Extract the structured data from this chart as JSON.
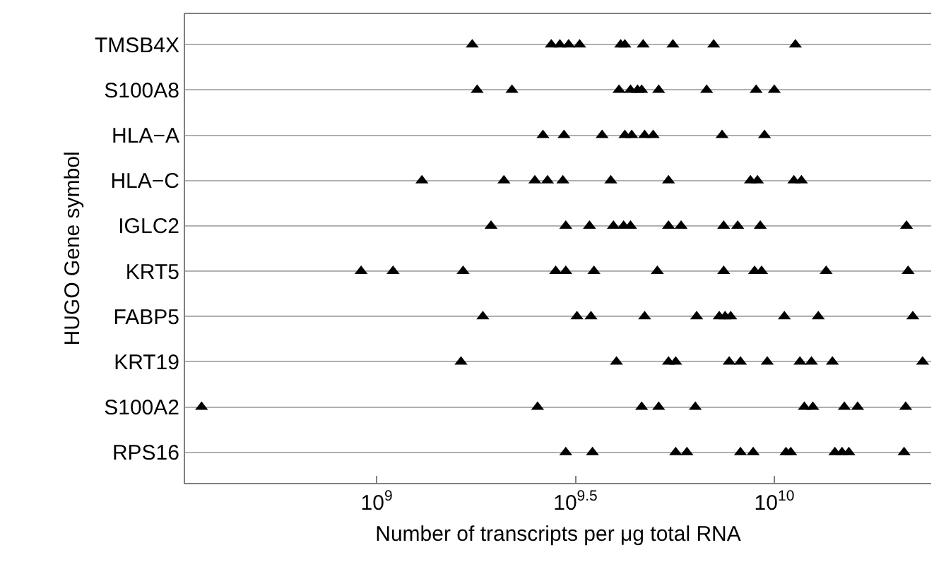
{
  "chart_data": {
    "type": "scatter",
    "orientation": "horizontal",
    "xlabel": "Number of transcripts per μg total RNA",
    "ylabel": "HUGO Gene symbol",
    "categories": [
      "TMSB4X",
      "S100A8",
      "HLA−A",
      "HLA−C",
      "IGLC2",
      "KRT5",
      "FABP5",
      "KRT19",
      "S100A2",
      "RPS16"
    ],
    "log": "x",
    "xlim": [
      330000000,
      24800000000
    ],
    "xticks": [
      {
        "value": 1000000000,
        "label": "10$^{9}$"
      },
      {
        "value": 3162277660,
        "label": "10$^{9.5}$"
      },
      {
        "value": 10000000000,
        "label": "10$^{10}$"
      }
    ],
    "grid": "y",
    "marker": "triangle",
    "series": [
      {
        "color": "#000000",
        "x": [
          "TMSB4X",
          "TMSB4X",
          "TMSB4X",
          "TMSB4X",
          "TMSB4X",
          "TMSB4X",
          "TMSB4X",
          "TMSB4X",
          "TMSB4X",
          "TMSB4X",
          "TMSB4X"
        ],
        "values": [
          1740000000,
          2750000000,
          2890000000,
          3040000000,
          3240000000,
          4110000000,
          4210000000,
          4680000000,
          5560000000,
          7040000000,
          11300000000
        ]
      },
      {
        "color": "#000000",
        "x": [
          "S100A8",
          "S100A8",
          "S100A8",
          "S100A8",
          "S100A8",
          "S100A8",
          "S100A8",
          "S100A8",
          "S100A8",
          "S100A8"
        ],
        "values": [
          1790000000,
          2190000000,
          4070000000,
          4350000000,
          4530000000,
          4640000000,
          5120000000,
          6760000000,
          9000000000,
          10000000000
        ]
      },
      {
        "color": "#000000",
        "x": [
          "HLA−A",
          "HLA−A",
          "HLA−A",
          "HLA−A",
          "HLA−A",
          "HLA−A",
          "HLA−A",
          "HLA−A",
          "HLA−A"
        ],
        "values": [
          2620000000,
          2960000000,
          3690000000,
          4210000000,
          4380000000,
          4720000000,
          4960000000,
          7390000000,
          9450000000
        ]
      },
      {
        "color": "#000000",
        "x": [
          "HLA−C",
          "HLA−C",
          "HLA−C",
          "HLA−C",
          "HLA−C",
          "HLA−C",
          "HLA−C",
          "HLA−C",
          "HLA−C",
          "HLA−C",
          "HLA−C"
        ],
        "values": [
          1300000000,
          2090000000,
          2500000000,
          2690000000,
          2940000000,
          3880000000,
          5420000000,
          8710000000,
          9070000000,
          11200000000,
          11700000000
        ]
      },
      {
        "color": "#000000",
        "x": [
          "IGLC2",
          "IGLC2",
          "IGLC2",
          "IGLC2",
          "IGLC2",
          "IGLC2",
          "IGLC2",
          "IGLC2",
          "IGLC2",
          "IGLC2",
          "IGLC2",
          "IGLC2"
        ],
        "values": [
          1940000000,
          2990000000,
          3430000000,
          3940000000,
          4180000000,
          4350000000,
          5420000000,
          5830000000,
          7460000000,
          8090000000,
          9220000000,
          21500000000
        ]
      },
      {
        "color": "#000000",
        "x": [
          "KRT5",
          "KRT5",
          "KRT5",
          "KRT5",
          "KRT5",
          "KRT5",
          "KRT5",
          "KRT5",
          "KRT5",
          "KRT5",
          "KRT5",
          "KRT5"
        ],
        "values": [
          914000000,
          1100000000,
          1650000000,
          2820000000,
          2990000000,
          3520000000,
          5080000000,
          7460000000,
          8920000000,
          9290000000,
          13500000000,
          21700000000
        ]
      },
      {
        "color": "#000000",
        "x": [
          "FABP5",
          "FABP5",
          "FABP5",
          "FABP5",
          "FABP5",
          "FABP5",
          "FABP5",
          "FABP5",
          "FABP5",
          "FABP5",
          "FABP5"
        ],
        "values": [
          1850000000,
          3190000000,
          3460000000,
          4720000000,
          6380000000,
          7270000000,
          7520000000,
          7770000000,
          10600000000,
          12900000000,
          22300000000
        ]
      },
      {
        "color": "#000000",
        "x": [
          "KRT19",
          "KRT19",
          "KRT19",
          "KRT19",
          "KRT19",
          "KRT19",
          "KRT19",
          "KRT19",
          "KRT19",
          "KRT19",
          "KRT19"
        ],
        "values": [
          1630000000,
          4010000000,
          5420000000,
          5650000000,
          7700000000,
          8220000000,
          9600000000,
          11600000000,
          12400000000,
          14000000000,
          23600000000
        ]
      },
      {
        "color": "#000000",
        "x": [
          "S100A2",
          "S100A2",
          "S100A2",
          "S100A2",
          "S100A2",
          "S100A2",
          "S100A2",
          "S100A2",
          "S100A2",
          "S100A2"
        ],
        "values": [
          363000000,
          2540000000,
          4640000000,
          5120000000,
          6330000000,
          11900000000,
          12500000000,
          15000000000,
          16200000000,
          21400000000
        ]
      },
      {
        "color": "#000000",
        "x": [
          "RPS16",
          "RPS16",
          "RPS16",
          "RPS16",
          "RPS16",
          "RPS16",
          "RPS16",
          "RPS16",
          "RPS16",
          "RPS16",
          "RPS16",
          "RPS16"
        ],
        "values": [
          2990000000,
          3490000000,
          5650000000,
          6030000000,
          8220000000,
          8850000000,
          10700000000,
          11000000000,
          14200000000,
          14800000000,
          15400000000,
          21200000000
        ]
      }
    ]
  }
}
